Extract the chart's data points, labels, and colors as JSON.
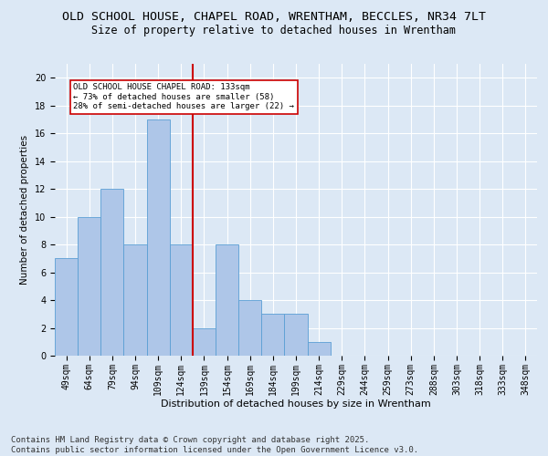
{
  "title_line1": "OLD SCHOOL HOUSE, CHAPEL ROAD, WRENTHAM, BECCLES, NR34 7LT",
  "title_line2": "Size of property relative to detached houses in Wrentham",
  "xlabel": "Distribution of detached houses by size in Wrentham",
  "ylabel": "Number of detached properties",
  "categories": [
    "49sqm",
    "64sqm",
    "79sqm",
    "94sqm",
    "109sqm",
    "124sqm",
    "139sqm",
    "154sqm",
    "169sqm",
    "184sqm",
    "199sqm",
    "214sqm",
    "229sqm",
    "244sqm",
    "259sqm",
    "273sqm",
    "288sqm",
    "303sqm",
    "318sqm",
    "333sqm",
    "348sqm"
  ],
  "values": [
    7,
    10,
    12,
    8,
    17,
    8,
    2,
    8,
    4,
    3,
    3,
    1,
    0,
    0,
    0,
    0,
    0,
    0,
    0,
    0,
    0
  ],
  "bar_color": "#aec6e8",
  "bar_edge_color": "#5a9fd4",
  "ylim": [
    0,
    21
  ],
  "yticks": [
    0,
    2,
    4,
    6,
    8,
    10,
    12,
    14,
    16,
    18,
    20
  ],
  "red_line_x": 5.5,
  "annotation_text": "OLD SCHOOL HOUSE CHAPEL ROAD: 133sqm\n← 73% of detached houses are smaller (58)\n28% of semi-detached houses are larger (22) →",
  "annotation_box_color": "#ffffff",
  "annotation_box_edge_color": "#cc0000",
  "footer_line1": "Contains HM Land Registry data © Crown copyright and database right 2025.",
  "footer_line2": "Contains public sector information licensed under the Open Government Licence v3.0.",
  "background_color": "#dce8f5",
  "plot_background_color": "#dce8f5",
  "grid_color": "#ffffff",
  "red_line_color": "#cc0000",
  "title_fontsize": 9.5,
  "subtitle_fontsize": 8.5,
  "tick_fontsize": 7,
  "ylabel_fontsize": 7.5,
  "xlabel_fontsize": 8,
  "footer_fontsize": 6.5,
  "annotation_fontsize": 6.5
}
